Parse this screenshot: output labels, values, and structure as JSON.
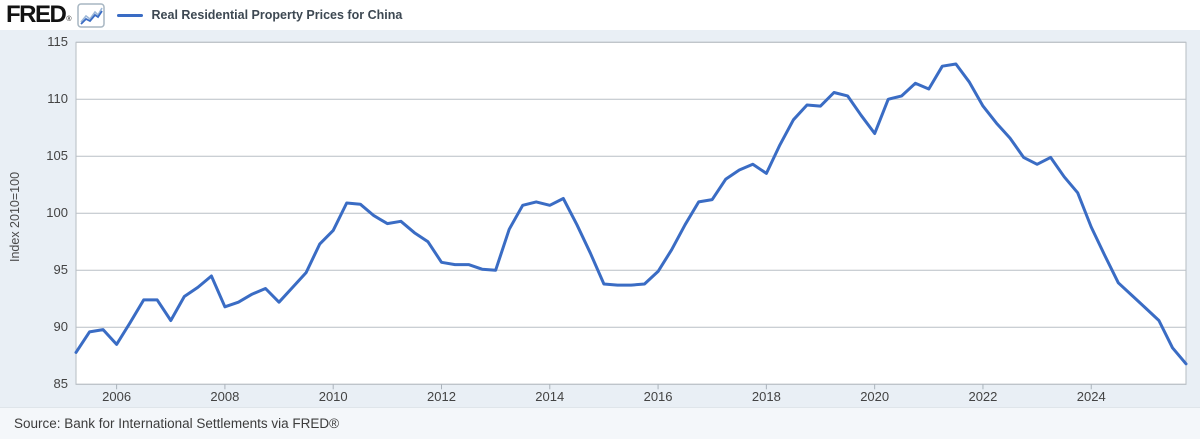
{
  "header": {
    "logo": "FRED",
    "logo_mark": "®",
    "legend_label": "Real Residential Property Prices for China"
  },
  "footer": {
    "source": "Source: Bank for International Settlements via FRED®"
  },
  "chart_data": {
    "type": "line",
    "title": "Real Residential Property Prices for China",
    "ylabel": "Index 2010=100",
    "xlabel": "",
    "ylim": [
      85,
      115
    ],
    "y_ticks": [
      115,
      110,
      105,
      100,
      95,
      90,
      85
    ],
    "x_tick_years": [
      2006,
      2008,
      2010,
      2012,
      2014,
      2016,
      2018,
      2020,
      2022,
      2024
    ],
    "grid": "horizontal",
    "legend_position": "top-left",
    "line_color": "#3a6cc4",
    "series": [
      {
        "name": "Real Residential Property Prices for China",
        "x": [
          "2005-Q2",
          "2005-Q3",
          "2005-Q4",
          "2006-Q1",
          "2006-Q2",
          "2006-Q3",
          "2006-Q4",
          "2007-Q1",
          "2007-Q2",
          "2007-Q3",
          "2007-Q4",
          "2008-Q1",
          "2008-Q2",
          "2008-Q3",
          "2008-Q4",
          "2009-Q1",
          "2009-Q2",
          "2009-Q3",
          "2009-Q4",
          "2010-Q1",
          "2010-Q2",
          "2010-Q3",
          "2010-Q4",
          "2011-Q1",
          "2011-Q2",
          "2011-Q3",
          "2011-Q4",
          "2012-Q1",
          "2012-Q2",
          "2012-Q3",
          "2012-Q4",
          "2013-Q1",
          "2013-Q2",
          "2013-Q3",
          "2013-Q4",
          "2014-Q1",
          "2014-Q2",
          "2014-Q3",
          "2014-Q4",
          "2015-Q1",
          "2015-Q2",
          "2015-Q3",
          "2015-Q4",
          "2016-Q1",
          "2016-Q2",
          "2016-Q3",
          "2016-Q4",
          "2017-Q1",
          "2017-Q2",
          "2017-Q3",
          "2017-Q4",
          "2018-Q1",
          "2018-Q2",
          "2018-Q3",
          "2018-Q4",
          "2019-Q1",
          "2019-Q2",
          "2019-Q3",
          "2019-Q4",
          "2020-Q1",
          "2020-Q2",
          "2020-Q3",
          "2020-Q4",
          "2021-Q1",
          "2021-Q2",
          "2021-Q3",
          "2021-Q4",
          "2022-Q1",
          "2022-Q2",
          "2022-Q3",
          "2022-Q4",
          "2023-Q1",
          "2023-Q2",
          "2023-Q3",
          "2023-Q4",
          "2024-Q1",
          "2024-Q2",
          "2024-Q3",
          "2024-Q4",
          "2025-Q1",
          "2025-Q2",
          "2025-Q3",
          "2025-Q4"
        ],
        "values": [
          87.8,
          89.6,
          89.8,
          88.5,
          90.4,
          92.4,
          92.4,
          90.6,
          92.7,
          93.5,
          94.5,
          91.8,
          92.2,
          92.9,
          93.4,
          92.2,
          93.5,
          94.8,
          97.3,
          98.5,
          100.9,
          100.8,
          99.8,
          99.1,
          99.3,
          98.3,
          97.5,
          95.7,
          95.5,
          95.5,
          95.1,
          95.0,
          98.6,
          100.7,
          101.0,
          100.7,
          101.3,
          99.0,
          96.5,
          93.8,
          93.7,
          93.7,
          93.8,
          94.9,
          96.8,
          99.0,
          101.0,
          101.2,
          103.0,
          103.8,
          104.3,
          103.5,
          106.0,
          108.2,
          109.5,
          109.4,
          110.6,
          110.3,
          108.6,
          107.0,
          110.0,
          110.3,
          111.4,
          110.9,
          112.9,
          113.1,
          111.5,
          109.4,
          107.9,
          106.6,
          104.9,
          104.3,
          104.9,
          103.2,
          101.8,
          98.8,
          96.3,
          93.9,
          92.8,
          91.7,
          90.6,
          88.2,
          86.8
        ]
      }
    ]
  }
}
